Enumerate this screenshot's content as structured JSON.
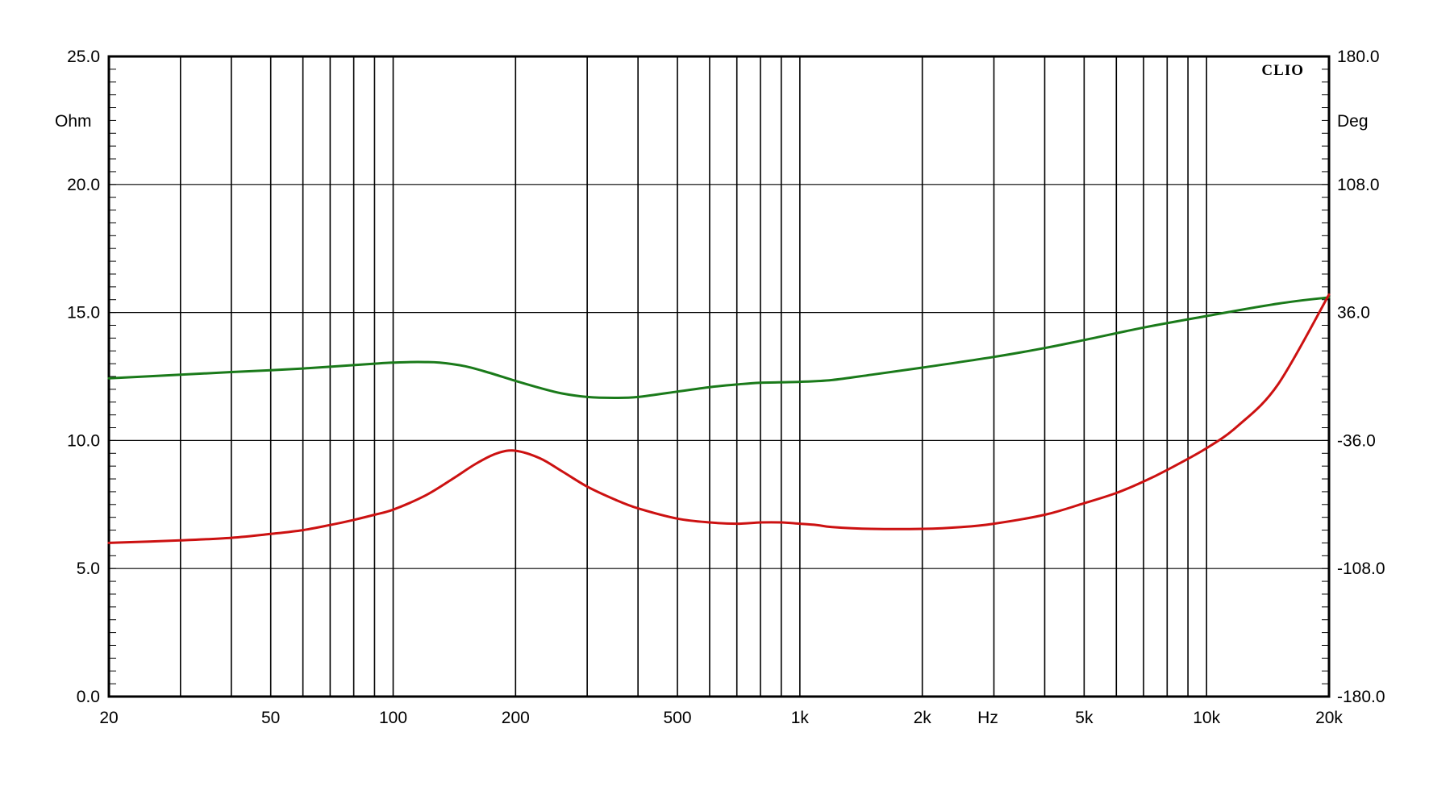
{
  "chart_data": {
    "type": "line",
    "brand": "CLIO",
    "x_scale": "log",
    "xlim": [
      20,
      20000
    ],
    "x_unit_label": "Hz",
    "x_ticks": [
      {
        "value": 20,
        "label": "20"
      },
      {
        "value": 50,
        "label": "50"
      },
      {
        "value": 100,
        "label": "100"
      },
      {
        "value": 200,
        "label": "200"
      },
      {
        "value": 500,
        "label": "500"
      },
      {
        "value": 1000,
        "label": "1k"
      },
      {
        "value": 2000,
        "label": "2k"
      },
      {
        "value": 5000,
        "label": "5k"
      },
      {
        "value": 10000,
        "label": "10k"
      },
      {
        "value": 20000,
        "label": "20k"
      }
    ],
    "y_left": {
      "unit": "Ohm",
      "ylim": [
        0,
        25
      ],
      "ticks": [
        "0.0",
        "5.0",
        "10.0",
        "15.0",
        "20.0",
        "25.0"
      ]
    },
    "y_right": {
      "unit": "Deg",
      "ylim": [
        -180,
        180
      ],
      "ticks": [
        "-180.0",
        "-108.0",
        "-36.0",
        "36.0",
        "108.0",
        "180.0"
      ]
    },
    "grid": true,
    "series": [
      {
        "axis": "right",
        "color": "#1a7a1a",
        "x": [
          20,
          30,
          40,
          50,
          60,
          70,
          80,
          90,
          100,
          110,
          120,
          130,
          150,
          170,
          200,
          230,
          260,
          300,
          350,
          400,
          500,
          600,
          700,
          800,
          1000,
          1200,
          1500,
          2000,
          3000,
          4000,
          5000,
          7000,
          10000,
          15000,
          20000
        ],
        "values": [
          -1,
          1,
          2.5,
          3.5,
          4.5,
          5.5,
          6.4,
          7.2,
          7.8,
          8.1,
          8.1,
          7.8,
          5.8,
          2.5,
          -2.5,
          -6.5,
          -9.5,
          -11.5,
          -12,
          -11.5,
          -8.5,
          -6,
          -4.5,
          -3.5,
          -3,
          -2,
          1,
          5,
          11,
          16,
          20.5,
          27.5,
          34,
          41,
          44.5
        ]
      },
      {
        "axis": "left",
        "color": "#cc1111",
        "x": [
          20,
          30,
          40,
          50,
          60,
          70,
          80,
          90,
          100,
          120,
          140,
          160,
          180,
          200,
          230,
          260,
          300,
          350,
          400,
          500,
          600,
          700,
          800,
          900,
          1000,
          1100,
          1200,
          1500,
          2000,
          2500,
          3000,
          4000,
          5000,
          6000,
          7000,
          8000,
          10000,
          12000,
          15000,
          20000
        ],
        "values": [
          6.0,
          6.1,
          6.2,
          6.35,
          6.5,
          6.7,
          6.9,
          7.1,
          7.3,
          7.85,
          8.5,
          9.1,
          9.5,
          9.6,
          9.3,
          8.8,
          8.2,
          7.7,
          7.35,
          6.95,
          6.8,
          6.75,
          6.8,
          6.8,
          6.75,
          6.7,
          6.62,
          6.55,
          6.55,
          6.62,
          6.75,
          7.1,
          7.55,
          7.95,
          8.4,
          8.85,
          9.7,
          10.6,
          12.2,
          15.7
        ]
      }
    ]
  }
}
